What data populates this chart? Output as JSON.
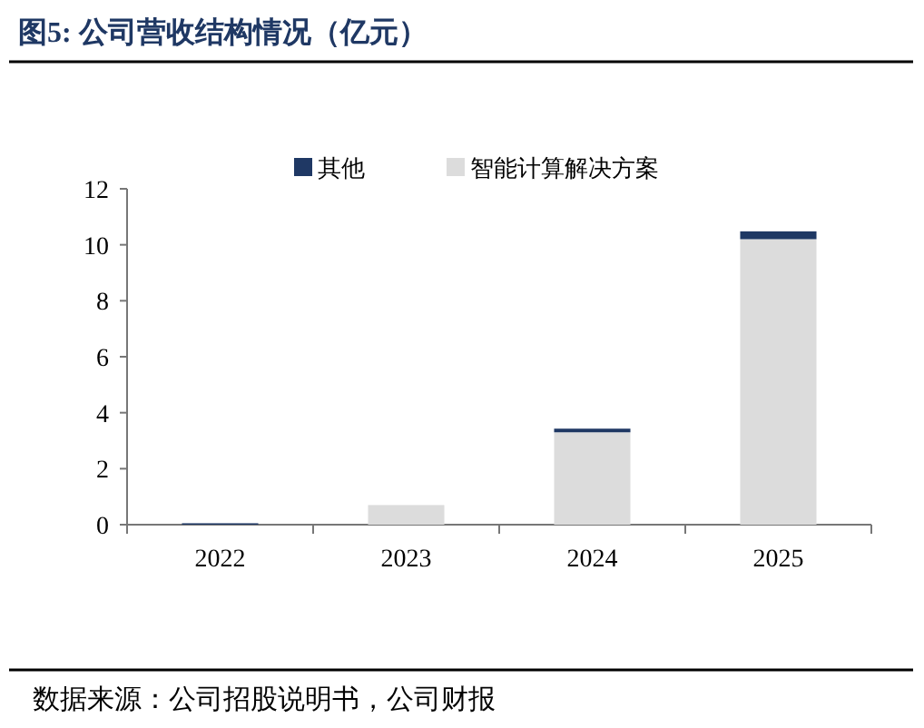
{
  "chart_data": {
    "type": "bar",
    "title": "图5:  公司营收结构情况（亿元）",
    "categories": [
      "2022",
      "2023",
      "2024",
      "2025"
    ],
    "stacked": true,
    "series": [
      {
        "name": "智能计算解决方案",
        "color": "#dcdcdc",
        "values": [
          0,
          0.7,
          3.3,
          10.2
        ]
      },
      {
        "name": "其他",
        "color": "#1f3864",
        "values": [
          0.05,
          0,
          0.13,
          0.28
        ]
      }
    ],
    "ylim": [
      0,
      12
    ],
    "yticks": [
      0,
      2,
      4,
      6,
      8,
      10,
      12
    ],
    "grid": false,
    "legend": "top",
    "annotations": [
      "数据来源：公司招股说明书，公司财报"
    ]
  }
}
